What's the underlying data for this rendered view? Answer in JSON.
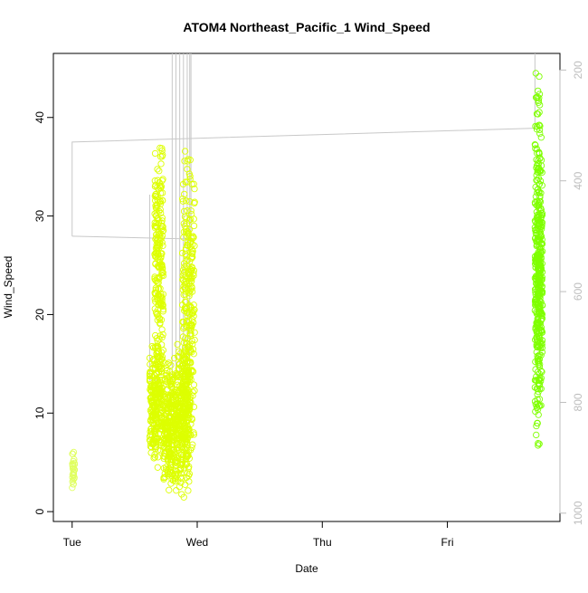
{
  "chart_data": {
    "type": "scatter",
    "title": "ATOM4 Northeast_Pacific_1 Wind_Speed",
    "xlabel": "Date",
    "ylabel": "Wind_Speed",
    "x_tick_labels": [
      "Tue",
      "Wed",
      "Thu",
      "Fri"
    ],
    "x_tick_days": [
      0,
      1,
      2,
      3
    ],
    "xlim_days": [
      -0.15,
      3.9
    ],
    "ylim": [
      -1,
      46.5
    ],
    "y_ticks": [
      0,
      10,
      20,
      30,
      40
    ],
    "y2_ticks": [
      200,
      400,
      600,
      800,
      1000
    ],
    "y2lim_reversed": [
      1015,
      170
    ],
    "grid": false,
    "legend": "none",
    "colors": {
      "points_early": "#ddff00",
      "points_late": "#7fff00",
      "points_first_cluster": "#e0ff60",
      "pressure_line": "#c8c8c8",
      "right_axis": "#bdbdbd"
    },
    "clusters": [
      {
        "x_range": [
          0.0,
          0.02
        ],
        "y_range": [
          2.3,
          6.3
        ],
        "n": 30,
        "color": "points_first_cluster"
      },
      {
        "x_range": [
          0.62,
          0.72
        ],
        "y_range": [
          4,
          18
        ],
        "n": 260,
        "color": "points_early"
      },
      {
        "x_range": [
          0.66,
          0.73
        ],
        "y_range": [
          12,
          37.8
        ],
        "n": 220,
        "color": "points_early"
      },
      {
        "x_range": [
          0.73,
          0.84
        ],
        "y_range": [
          1.5,
          16
        ],
        "n": 300,
        "color": "points_early"
      },
      {
        "x_range": [
          0.84,
          0.94
        ],
        "y_range": [
          1,
          18
        ],
        "n": 300,
        "color": "points_early"
      },
      {
        "x_range": [
          0.88,
          0.98
        ],
        "y_range": [
          5,
          37.5
        ],
        "n": 260,
        "color": "points_early"
      },
      {
        "x_range": [
          3.7,
          3.74
        ],
        "y_range": [
          5,
          45
        ],
        "n": 260,
        "color": "points_late"
      },
      {
        "x_range": [
          3.72,
          3.76
        ],
        "y_range": [
          8,
          40
        ],
        "n": 200,
        "color": "points_late"
      }
    ],
    "pressure_series": {
      "axis": "right",
      "points": [
        [
          0,
          500
        ],
        [
          0,
          330
        ],
        [
          3.7,
          305
        ],
        [
          3.7,
          170
        ]
      ],
      "segment2": [
        [
          0,
          500
        ],
        [
          0.95,
          505
        ],
        [
          0.95,
          170
        ]
      ],
      "spikes_x": [
        0.8,
        0.83,
        0.86,
        0.89,
        0.92,
        0.94
      ],
      "spike_bottom": 760,
      "wed_left_line": [
        [
          0.62,
          425
        ],
        [
          0.62,
          760
        ],
        [
          0.7,
          760
        ]
      ]
    }
  }
}
